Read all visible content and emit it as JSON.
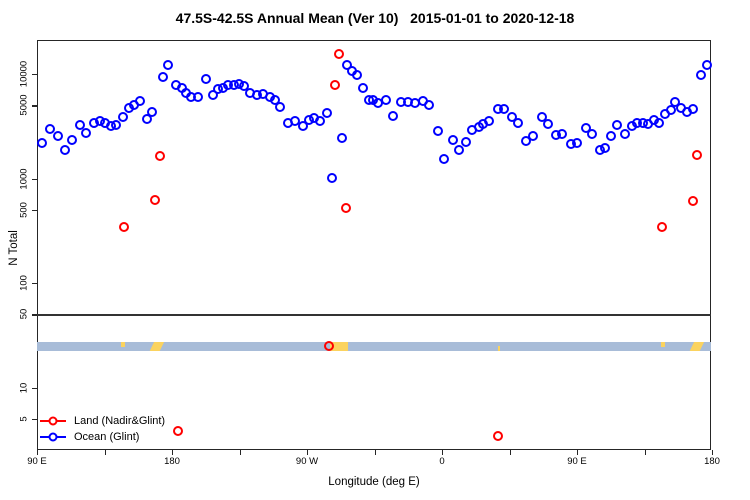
{
  "title": "47.5S-42.5S Annual Mean (Ver 10)   2015-01-01 to 2020-12-18",
  "legend": {
    "items": [
      {
        "label": "Land (Nadir&Glint)",
        "color": "#ff0000"
      },
      {
        "label": "Ocean (Glint)",
        "color": "#0000ff"
      }
    ]
  },
  "chart_data": {
    "type": "scatter",
    "title": "47.5S-42.5S Annual Mean (Ver 10)   2015-01-01 to 2020-12-18",
    "xlabel": "Longitude (deg E)",
    "ylabel": "N Total",
    "x_axis": {
      "range_deg_e": [
        90,
        540
      ],
      "ticks": [
        {
          "lon": 90,
          "label": "90 E"
        },
        {
          "lon": 135,
          "label": ""
        },
        {
          "lon": 180,
          "label": "180"
        },
        {
          "lon": 225,
          "label": ""
        },
        {
          "lon": 270,
          "label": "90 W"
        },
        {
          "lon": 315,
          "label": ""
        },
        {
          "lon": 360,
          "label": "0"
        },
        {
          "lon": 405,
          "label": ""
        },
        {
          "lon": 450,
          "label": "90 E"
        },
        {
          "lon": 495,
          "label": ""
        },
        {
          "lon": 540,
          "label": "180"
        }
      ]
    },
    "y_axis": {
      "scale": "log10",
      "range": [
        2.5,
        21000
      ],
      "ticks": [
        {
          "value": 10000,
          "label": "10000"
        },
        {
          "value": 5000,
          "label": "5000"
        },
        {
          "value": 1000,
          "label": "1000"
        },
        {
          "value": 500,
          "label": "500"
        },
        {
          "value": 100,
          "label": "100"
        },
        {
          "value": 50,
          "label": "50"
        },
        {
          "value": 10,
          "label": "10"
        },
        {
          "value": 5,
          "label": "5"
        }
      ]
    },
    "reference_line_value": 50,
    "land_ocean_strip": {
      "value_range": [
        22.5,
        27.2
      ],
      "ocean_color": "#a8bcd8",
      "land_color": "#fbd35f",
      "land_patches_deg_e": [
        {
          "from": 146.2,
          "to": 148.4,
          "part": "top"
        },
        {
          "from": 166.6,
          "to": 173.4,
          "part": "full",
          "slant": true
        },
        {
          "from": 285.2,
          "to": 297.4,
          "part": "full"
        },
        {
          "from": 397.2,
          "to": 398.8,
          "part": "bottom"
        },
        {
          "from": 506.2,
          "to": 508.4,
          "part": "top"
        },
        {
          "from": 526.6,
          "to": 533.4,
          "part": "full",
          "slant": true
        }
      ]
    },
    "series": [
      {
        "name": "Land (Nadir&Glint)",
        "color": "#ff0000",
        "points": [
          [
            148.2,
            340
          ],
          [
            168.7,
            620
          ],
          [
            172.2,
            1650
          ],
          [
            184.2,
            3.8
          ],
          [
            284.9,
            25
          ],
          [
            288.7,
            7900
          ],
          [
            291.6,
            15500
          ],
          [
            296.2,
            520
          ],
          [
            397.6,
            3.4
          ],
          [
            506.4,
            340
          ],
          [
            527.6,
            610
          ],
          [
            530.3,
            1670
          ]
        ]
      },
      {
        "name": "Ocean (Glint)",
        "color": "#0000ff",
        "points": [
          [
            93.0,
            2170
          ],
          [
            98.9,
            2980
          ],
          [
            103.8,
            2570
          ],
          [
            108.9,
            1870
          ],
          [
            113.3,
            2330
          ],
          [
            118.4,
            3250
          ],
          [
            122.9,
            2700
          ],
          [
            128.2,
            3370
          ],
          [
            131.8,
            3550
          ],
          [
            135.5,
            3370
          ],
          [
            139.3,
            3200
          ],
          [
            142.9,
            3250
          ],
          [
            147.3,
            3900
          ],
          [
            151.1,
            4700
          ],
          [
            154.9,
            5050
          ],
          [
            158.5,
            5500
          ],
          [
            163.3,
            3720
          ],
          [
            166.7,
            4370
          ],
          [
            173.8,
            9400
          ],
          [
            177.6,
            12200
          ],
          [
            182.7,
            7850
          ],
          [
            186.4,
            7400
          ],
          [
            189.3,
            6600
          ],
          [
            192.4,
            6080
          ],
          [
            197.6,
            6000
          ],
          [
            202.7,
            8900
          ],
          [
            207.6,
            6300
          ],
          [
            210.9,
            7150
          ],
          [
            214.2,
            7400
          ],
          [
            217.6,
            7850
          ],
          [
            221.3,
            7850
          ],
          [
            224.9,
            7950
          ],
          [
            228.0,
            7600
          ],
          [
            232.0,
            6600
          ],
          [
            236.9,
            6300
          ],
          [
            240.9,
            6500
          ],
          [
            245.0,
            6080
          ],
          [
            248.5,
            5700
          ],
          [
            251.8,
            4870
          ],
          [
            257.3,
            3370
          ],
          [
            261.8,
            3550
          ],
          [
            267.3,
            3180
          ],
          [
            271.3,
            3630
          ],
          [
            274.5,
            3770
          ],
          [
            278.4,
            3550
          ],
          [
            283.3,
            4200
          ],
          [
            286.4,
            1010
          ],
          [
            293.1,
            2430
          ],
          [
            296.9,
            12200
          ],
          [
            300.2,
            10700
          ],
          [
            303.3,
            9800
          ],
          [
            307.3,
            7400
          ],
          [
            311.3,
            5700
          ],
          [
            314.0,
            5600
          ],
          [
            317.1,
            5250
          ],
          [
            322.7,
            5700
          ],
          [
            327.6,
            3980
          ],
          [
            332.7,
            5400
          ],
          [
            337.1,
            5350
          ],
          [
            342.2,
            5250
          ],
          [
            347.1,
            5500
          ],
          [
            351.6,
            5050
          ],
          [
            357.1,
            2840
          ],
          [
            361.5,
            1530
          ],
          [
            367.1,
            2330
          ],
          [
            371.1,
            1870
          ],
          [
            376.0,
            2240
          ],
          [
            380.0,
            2900
          ],
          [
            384.9,
            3130
          ],
          [
            387.6,
            3300
          ],
          [
            391.2,
            3550
          ],
          [
            397.6,
            4620
          ],
          [
            401.3,
            4650
          ],
          [
            406.4,
            3900
          ],
          [
            410.9,
            3370
          ],
          [
            416.2,
            2280
          ],
          [
            420.7,
            2560
          ],
          [
            426.4,
            3900
          ],
          [
            430.9,
            3300
          ],
          [
            435.8,
            2610
          ],
          [
            439.8,
            2640
          ],
          [
            445.8,
            2130
          ],
          [
            450.2,
            2170
          ],
          [
            455.8,
            3040
          ],
          [
            460.2,
            2640
          ],
          [
            465.1,
            1870
          ],
          [
            468.5,
            1940
          ],
          [
            472.5,
            2560
          ],
          [
            476.9,
            3250
          ],
          [
            482.0,
            2640
          ],
          [
            486.4,
            3200
          ],
          [
            490.2,
            3370
          ],
          [
            493.8,
            3420
          ],
          [
            497.6,
            3300
          ],
          [
            501.3,
            3630
          ],
          [
            504.9,
            3420
          ],
          [
            508.7,
            4100
          ],
          [
            512.4,
            4500
          ],
          [
            515.3,
            5400
          ],
          [
            519.0,
            4700
          ],
          [
            523.1,
            4300
          ],
          [
            527.0,
            4650
          ],
          [
            532.7,
            9700
          ],
          [
            536.4,
            12100
          ]
        ]
      }
    ]
  }
}
